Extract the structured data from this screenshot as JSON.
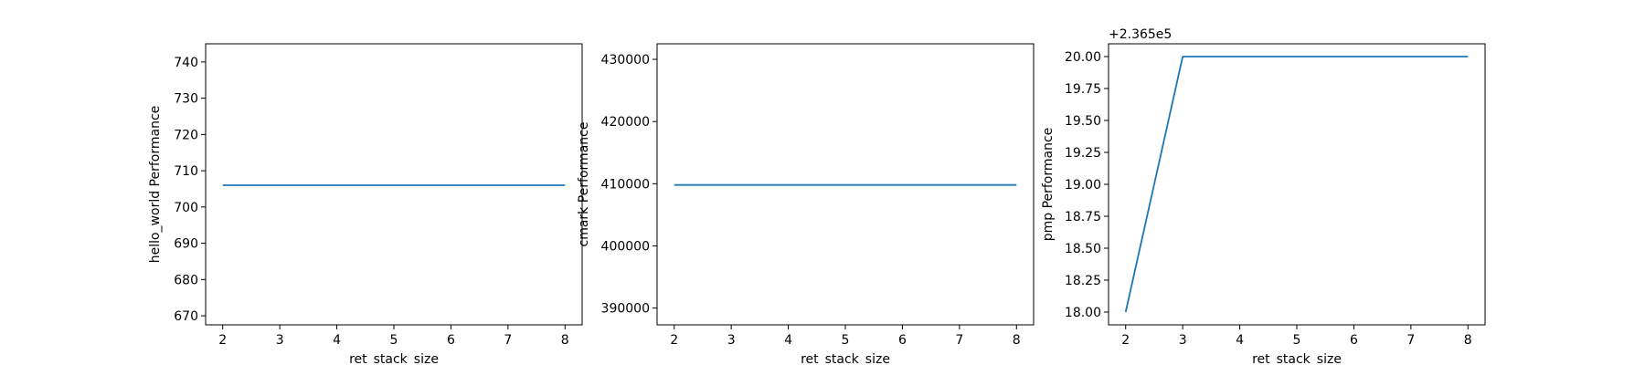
{
  "chart_data": [
    {
      "type": "line",
      "xlabel": "ret_stack_size",
      "ylabel": "hello_world Performance",
      "x": [
        2,
        3,
        4,
        5,
        6,
        7,
        8
      ],
      "series": [
        {
          "values": [
            706,
            706,
            706,
            706,
            706,
            706,
            706
          ],
          "color": "#1f77b4"
        }
      ],
      "xlim": [
        1.7,
        8.3
      ],
      "ylim": [
        667.5,
        745
      ],
      "xticks": [
        2,
        3,
        4,
        5,
        6,
        7,
        8
      ],
      "xtick_labels": [
        "2",
        "3",
        "4",
        "5",
        "6",
        "7",
        "8"
      ],
      "yticks": [
        670,
        680,
        690,
        700,
        710,
        720,
        730,
        740
      ],
      "ytick_labels": [
        "670",
        "680",
        "690",
        "700",
        "710",
        "720",
        "730",
        "740"
      ],
      "offset_text": "",
      "grid": false
    },
    {
      "type": "line",
      "xlabel": "ret_stack_size",
      "ylabel": "cmark Performance",
      "x": [
        2,
        3,
        4,
        5,
        6,
        7,
        8
      ],
      "series": [
        {
          "values": [
            409800,
            409800,
            409800,
            409800,
            409800,
            409800,
            409800
          ],
          "color": "#1f77b4"
        }
      ],
      "xlim": [
        1.7,
        8.3
      ],
      "ylim": [
        387300,
        432500
      ],
      "xticks": [
        2,
        3,
        4,
        5,
        6,
        7,
        8
      ],
      "xtick_labels": [
        "2",
        "3",
        "4",
        "5",
        "6",
        "7",
        "8"
      ],
      "yticks": [
        390000,
        400000,
        410000,
        420000,
        430000
      ],
      "ytick_labels": [
        "390000",
        "400000",
        "410000",
        "420000",
        "430000"
      ],
      "offset_text": "",
      "grid": false
    },
    {
      "type": "line",
      "xlabel": "ret_stack_size",
      "ylabel": "pmp Performance",
      "x": [
        2,
        3,
        4,
        5,
        6,
        7,
        8
      ],
      "series": [
        {
          "values": [
            18.0,
            20.0,
            20.0,
            20.0,
            20.0,
            20.0,
            20.0
          ],
          "color": "#1f77b4"
        }
      ],
      "xlim": [
        1.7,
        8.3
      ],
      "ylim": [
        17.9,
        20.1
      ],
      "xticks": [
        2,
        3,
        4,
        5,
        6,
        7,
        8
      ],
      "xtick_labels": [
        "2",
        "3",
        "4",
        "5",
        "6",
        "7",
        "8"
      ],
      "yticks": [
        18.0,
        18.25,
        18.5,
        18.75,
        19.0,
        19.25,
        19.5,
        19.75,
        20.0
      ],
      "ytick_labels": [
        "18.00",
        "18.25",
        "18.50",
        "18.75",
        "19.00",
        "19.25",
        "19.50",
        "19.75",
        "20.00"
      ],
      "offset_text": "+2.365e5",
      "grid": false
    }
  ]
}
